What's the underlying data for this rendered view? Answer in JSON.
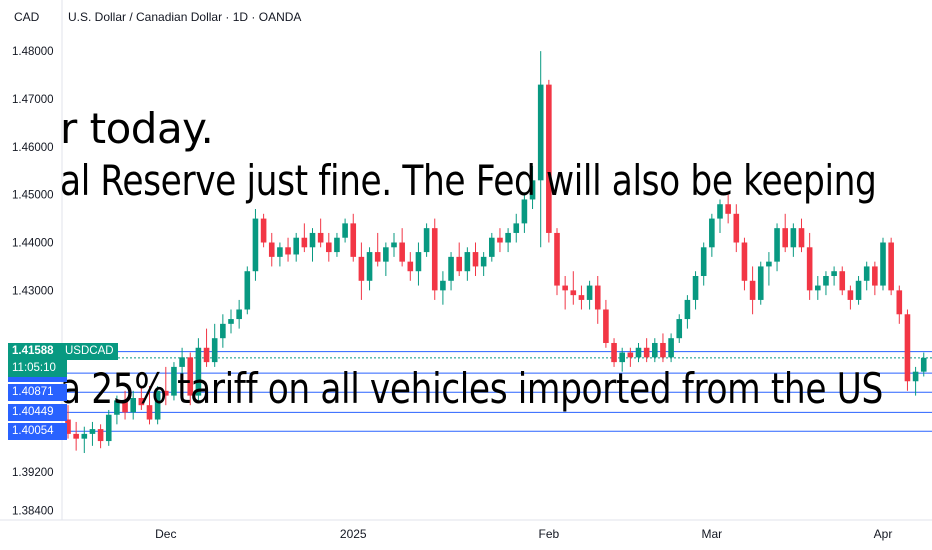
{
  "header": {
    "currency": "CAD",
    "title": "U.S. Dollar / Canadian Dollar · 1D · OANDA"
  },
  "price_tag": {
    "symbol": "USDCAD",
    "price": "1.41588",
    "countdown": "11:05:10"
  },
  "overlay_lines": [
    "r today.",
    "al Reserve just fine. The Fed will also be keeping",
    "a 25% tariff on all vehicles imported from the US"
  ],
  "colors": {
    "up": "#089981",
    "down": "#f23645",
    "level": "#2962ff",
    "tag": "#2962ff",
    "price_tag": "#089981"
  },
  "chart_data": {
    "type": "candlestick",
    "y_ticks": [
      1.384,
      1.392,
      1.43,
      1.44,
      1.45,
      1.46,
      1.47,
      1.48
    ],
    "y_tick_labels": [
      "1.38400",
      "1.39200",
      "1.43000",
      "1.44000",
      "1.45000",
      "1.46000",
      "1.47000",
      "1.48000"
    ],
    "x_ticks": [
      {
        "label": "Dec",
        "index": 12
      },
      {
        "label": "2025",
        "index": 35
      },
      {
        "label": "Feb",
        "index": 59
      },
      {
        "label": "Mar",
        "index": 79
      },
      {
        "label": "Apr",
        "index": 100
      }
    ],
    "levels": [
      {
        "label": "1.41720",
        "value": 1.4172
      },
      {
        "label": "1.41269",
        "value": 1.41269
      },
      {
        "label": "1.40871",
        "value": 1.40871
      },
      {
        "label": "1.40449",
        "value": 1.40449
      },
      {
        "label": "1.40054",
        "value": 1.40054
      }
    ],
    "last_price": 1.41588,
    "candles": [
      [
        1.403,
        1.406,
        1.399,
        1.4
      ],
      [
        1.4,
        1.4025,
        1.3965,
        1.399
      ],
      [
        1.399,
        1.4015,
        1.396,
        1.4
      ],
      [
        1.4,
        1.4025,
        1.3975,
        1.401
      ],
      [
        1.401,
        1.402,
        1.397,
        1.3985
      ],
      [
        1.3985,
        1.405,
        1.3975,
        1.404
      ],
      [
        1.404,
        1.408,
        1.402,
        1.407
      ],
      [
        1.407,
        1.409,
        1.403,
        1.4045
      ],
      [
        1.4045,
        1.409,
        1.403,
        1.4075
      ],
      [
        1.4075,
        1.41,
        1.405,
        1.406
      ],
      [
        1.406,
        1.41,
        1.402,
        1.403
      ],
      [
        1.403,
        1.41,
        1.402,
        1.409
      ],
      [
        1.409,
        1.414,
        1.406,
        1.408
      ],
      [
        1.408,
        1.415,
        1.407,
        1.414
      ],
      [
        1.414,
        1.418,
        1.412,
        1.416
      ],
      [
        1.416,
        1.417,
        1.406,
        1.408
      ],
      [
        1.408,
        1.42,
        1.407,
        1.418
      ],
      [
        1.418,
        1.422,
        1.414,
        1.415
      ],
      [
        1.415,
        1.423,
        1.414,
        1.42
      ],
      [
        1.42,
        1.425,
        1.418,
        1.423
      ],
      [
        1.423,
        1.426,
        1.421,
        1.424
      ],
      [
        1.424,
        1.428,
        1.422,
        1.426
      ],
      [
        1.426,
        1.435,
        1.425,
        1.434
      ],
      [
        1.434,
        1.447,
        1.432,
        1.445
      ],
      [
        1.445,
        1.446,
        1.439,
        1.44
      ],
      [
        1.44,
        1.442,
        1.435,
        1.437
      ],
      [
        1.437,
        1.44,
        1.435,
        1.439
      ],
      [
        1.439,
        1.441,
        1.436,
        1.4375
      ],
      [
        1.4375,
        1.442,
        1.436,
        1.441
      ],
      [
        1.441,
        1.444,
        1.438,
        1.439
      ],
      [
        1.439,
        1.443,
        1.436,
        1.442
      ],
      [
        1.442,
        1.445,
        1.439,
        1.44
      ],
      [
        1.44,
        1.442,
        1.436,
        1.438
      ],
      [
        1.438,
        1.442,
        1.437,
        1.441
      ],
      [
        1.441,
        1.445,
        1.44,
        1.444
      ],
      [
        1.444,
        1.446,
        1.436,
        1.437
      ],
      [
        1.437,
        1.44,
        1.428,
        1.432
      ],
      [
        1.432,
        1.439,
        1.43,
        1.438
      ],
      [
        1.438,
        1.442,
        1.435,
        1.436
      ],
      [
        1.436,
        1.44,
        1.433,
        1.439
      ],
      [
        1.439,
        1.442,
        1.437,
        1.44
      ],
      [
        1.44,
        1.443,
        1.435,
        1.436
      ],
      [
        1.436,
        1.438,
        1.432,
        1.434
      ],
      [
        1.434,
        1.44,
        1.431,
        1.438
      ],
      [
        1.438,
        1.444,
        1.437,
        1.443
      ],
      [
        1.443,
        1.445,
        1.428,
        1.43
      ],
      [
        1.43,
        1.434,
        1.427,
        1.432
      ],
      [
        1.432,
        1.438,
        1.43,
        1.437
      ],
      [
        1.437,
        1.44,
        1.433,
        1.434
      ],
      [
        1.434,
        1.439,
        1.432,
        1.438
      ],
      [
        1.438,
        1.44,
        1.433,
        1.435
      ],
      [
        1.435,
        1.438,
        1.433,
        1.437
      ],
      [
        1.437,
        1.442,
        1.436,
        1.441
      ],
      [
        1.441,
        1.443,
        1.438,
        1.44
      ],
      [
        1.44,
        1.443,
        1.438,
        1.442
      ],
      [
        1.442,
        1.446,
        1.44,
        1.444
      ],
      [
        1.444,
        1.45,
        1.442,
        1.449
      ],
      [
        1.449,
        1.456,
        1.447,
        1.453
      ],
      [
        1.453,
        1.48,
        1.439,
        1.473
      ],
      [
        1.473,
        1.474,
        1.44,
        1.442
      ],
      [
        1.442,
        1.443,
        1.429,
        1.431
      ],
      [
        1.431,
        1.433,
        1.426,
        1.43
      ],
      [
        1.43,
        1.434,
        1.427,
        1.429
      ],
      [
        1.429,
        1.431,
        1.426,
        1.428
      ],
      [
        1.428,
        1.432,
        1.426,
        1.431
      ],
      [
        1.431,
        1.433,
        1.423,
        1.426
      ],
      [
        1.426,
        1.428,
        1.418,
        1.419
      ],
      [
        1.419,
        1.42,
        1.414,
        1.415
      ],
      [
        1.415,
        1.418,
        1.413,
        1.417
      ],
      [
        1.417,
        1.418,
        1.414,
        1.416
      ],
      [
        1.416,
        1.419,
        1.415,
        1.418
      ],
      [
        1.418,
        1.42,
        1.415,
        1.416
      ],
      [
        1.416,
        1.42,
        1.415,
        1.419
      ],
      [
        1.419,
        1.421,
        1.415,
        1.416
      ],
      [
        1.416,
        1.421,
        1.415,
        1.42
      ],
      [
        1.42,
        1.425,
        1.419,
        1.424
      ],
      [
        1.424,
        1.429,
        1.422,
        1.428
      ],
      [
        1.428,
        1.434,
        1.426,
        1.433
      ],
      [
        1.433,
        1.44,
        1.431,
        1.439
      ],
      [
        1.439,
        1.446,
        1.437,
        1.445
      ],
      [
        1.445,
        1.449,
        1.442,
        1.448
      ],
      [
        1.448,
        1.45,
        1.444,
        1.446
      ],
      [
        1.446,
        1.448,
        1.438,
        1.44
      ],
      [
        1.44,
        1.441,
        1.43,
        1.432
      ],
      [
        1.432,
        1.435,
        1.425,
        1.428
      ],
      [
        1.428,
        1.436,
        1.427,
        1.435
      ],
      [
        1.435,
        1.438,
        1.431,
        1.436
      ],
      [
        1.436,
        1.444,
        1.434,
        1.443
      ],
      [
        1.443,
        1.446,
        1.438,
        1.439
      ],
      [
        1.439,
        1.444,
        1.437,
        1.443
      ],
      [
        1.443,
        1.445,
        1.438,
        1.439
      ],
      [
        1.439,
        1.442,
        1.428,
        1.43
      ],
      [
        1.43,
        1.433,
        1.428,
        1.431
      ],
      [
        1.431,
        1.434,
        1.429,
        1.433
      ],
      [
        1.433,
        1.435,
        1.431,
        1.434
      ],
      [
        1.434,
        1.435,
        1.429,
        1.43
      ],
      [
        1.43,
        1.431,
        1.426,
        1.428
      ],
      [
        1.428,
        1.433,
        1.427,
        1.432
      ],
      [
        1.432,
        1.436,
        1.43,
        1.435
      ],
      [
        1.435,
        1.436,
        1.429,
        1.431
      ],
      [
        1.431,
        1.441,
        1.43,
        1.44
      ],
      [
        1.44,
        1.441,
        1.429,
        1.43
      ],
      [
        1.43,
        1.431,
        1.423,
        1.425
      ],
      [
        1.425,
        1.426,
        1.409,
        1.411
      ],
      [
        1.411,
        1.414,
        1.408,
        1.413
      ],
      [
        1.413,
        1.417,
        1.412,
        1.4159
      ]
    ]
  }
}
